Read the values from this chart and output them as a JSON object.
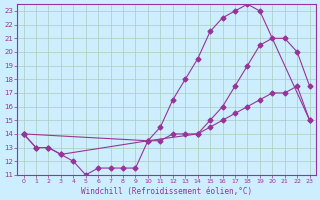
{
  "background_color": "#cceeff",
  "grid_color": "#aaccbb",
  "line_color": "#993399",
  "xlabel": "Windchill (Refroidissement éolien,°C)",
  "xlim": [
    -0.5,
    23.5
  ],
  "ylim": [
    11,
    23.5
  ],
  "yticks": [
    11,
    12,
    13,
    14,
    15,
    16,
    17,
    18,
    19,
    20,
    21,
    22,
    23
  ],
  "xticks": [
    0,
    1,
    2,
    3,
    4,
    5,
    6,
    7,
    8,
    9,
    10,
    11,
    12,
    13,
    14,
    15,
    16,
    17,
    18,
    19,
    20,
    21,
    22,
    23
  ],
  "line1_x": [
    0,
    1,
    2,
    3,
    10,
    11,
    12,
    13,
    14,
    15,
    16,
    17,
    18,
    19,
    23
  ],
  "line1_y": [
    14,
    13,
    13,
    12.5,
    13.5,
    14.5,
    16.5,
    18,
    19.5,
    21.5,
    22.5,
    23,
    23.5,
    23,
    15
  ],
  "line2_x": [
    0,
    10,
    14,
    15,
    16,
    17,
    18,
    19,
    20,
    21,
    22,
    23
  ],
  "line2_y": [
    14,
    13.5,
    14,
    15,
    16,
    17.5,
    19,
    20.5,
    21,
    21,
    20,
    17.5
  ],
  "line3_x": [
    0,
    1,
    2,
    3,
    4,
    5,
    6,
    7,
    8,
    9,
    10,
    11,
    12,
    13,
    14,
    15,
    16,
    17,
    18,
    19,
    20,
    21,
    22,
    23
  ],
  "line3_y": [
    14,
    13,
    13,
    12.5,
    12,
    11,
    11.5,
    11.5,
    11.5,
    11.5,
    13.5,
    13.5,
    14,
    14,
    14,
    14.5,
    15,
    15.5,
    16,
    16.5,
    17,
    17,
    17.5,
    15
  ]
}
